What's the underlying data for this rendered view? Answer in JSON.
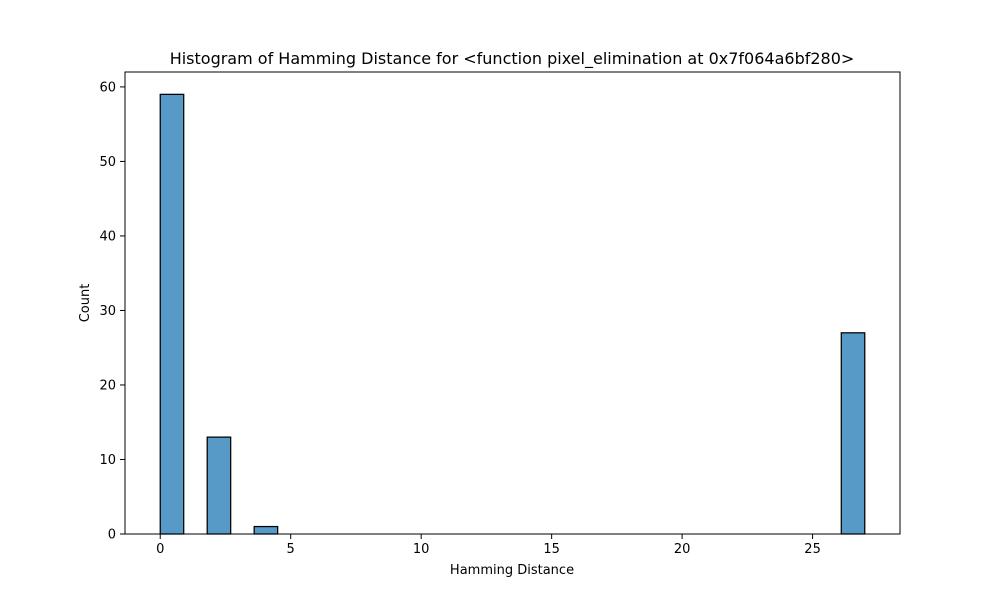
{
  "chart_data": {
    "type": "bar",
    "subtype": "histogram",
    "title": "Histogram of Hamming Distance for <function pixel_elimination at 0x7f064a6bf280>",
    "xlabel": "Hamming Distance",
    "ylabel": "Count",
    "xlim": [
      -1.35,
      28.35
    ],
    "ylim": [
      0,
      62
    ],
    "xticks": [
      0,
      5,
      10,
      15,
      20,
      25
    ],
    "yticks": [
      0,
      10,
      20,
      30,
      40,
      50,
      60
    ],
    "grid": false,
    "bins": [
      {
        "start": 0,
        "end": 0.9,
        "count": 59
      },
      {
        "start": 1.8,
        "end": 2.7,
        "count": 13
      },
      {
        "start": 3.6,
        "end": 4.5,
        "count": 1
      },
      {
        "start": 26.1,
        "end": 27.0,
        "count": 27
      }
    ]
  },
  "colors": {
    "bar_fill": "#5799c7",
    "bar_edge": "#000000"
  }
}
